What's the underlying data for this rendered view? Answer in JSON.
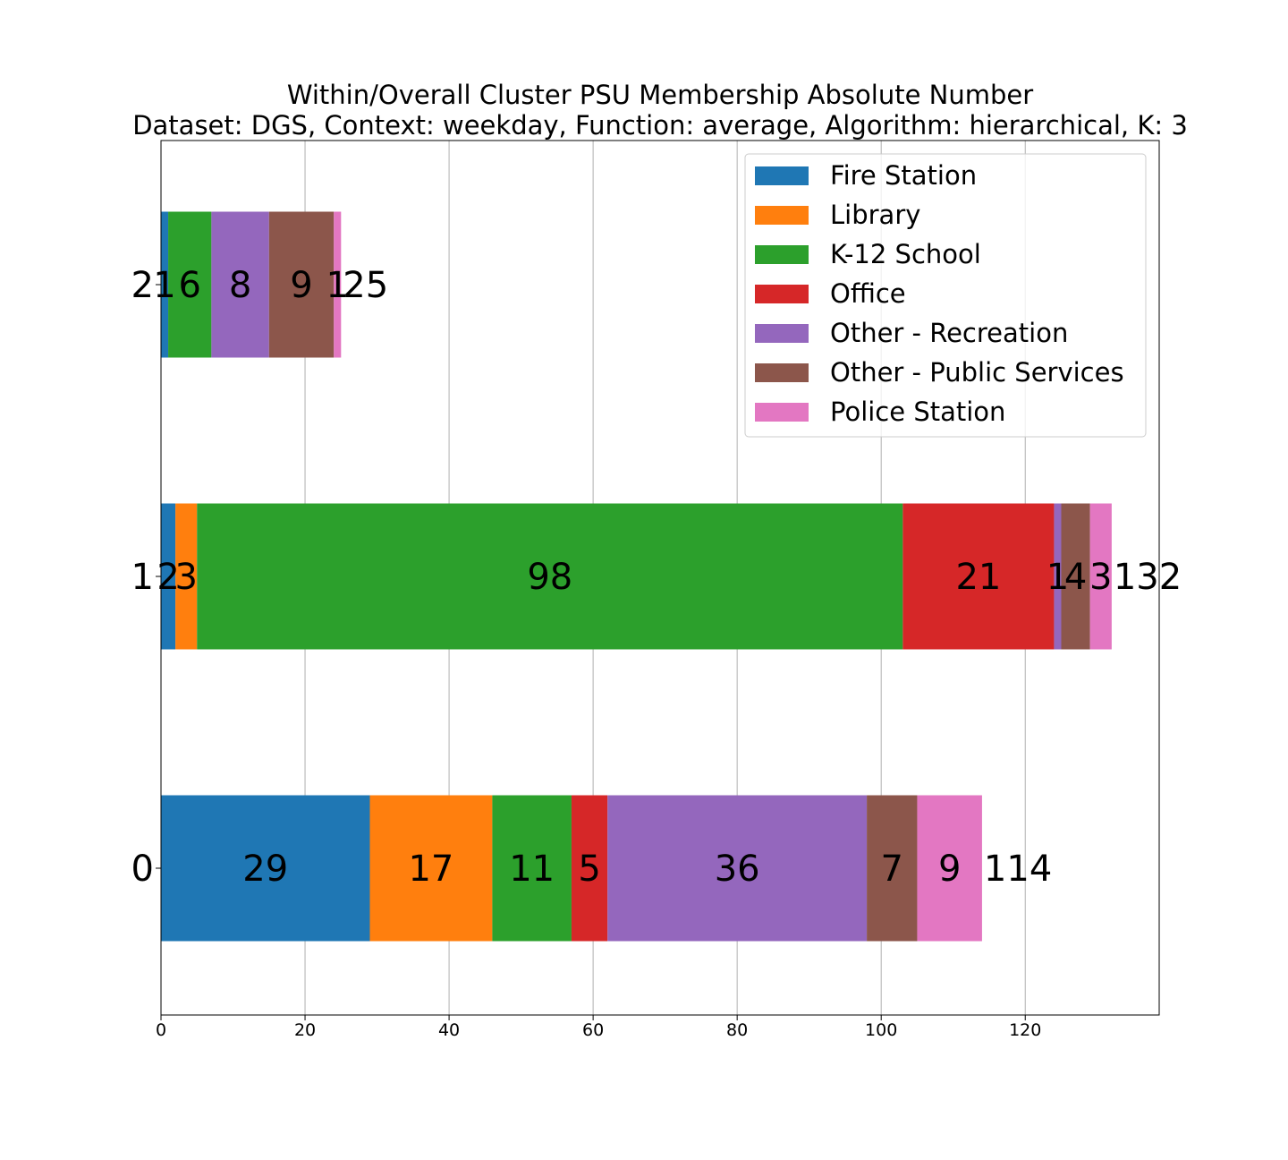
{
  "chart_data": {
    "type": "bar",
    "orientation": "horizontal",
    "stacked": true,
    "title": "Within/Overall Cluster PSU Membership Absolute Number",
    "subtitle": "Dataset: DGS, Context: weekday, Function: average, Algorithm: hierarchical, K: 3",
    "xlabel": "",
    "ylabel": "",
    "xlim": [
      0,
      138.6
    ],
    "xticks": [
      "0",
      "20",
      "40",
      "60",
      "80",
      "100",
      "120"
    ],
    "categories": [
      "0",
      "1",
      "2"
    ],
    "grid": "vertical",
    "legend_position": "top-right",
    "totals": [
      114,
      132,
      25
    ],
    "series": [
      {
        "name": "Fire Station",
        "color": "#1f77b4",
        "values": [
          29,
          2,
          1
        ]
      },
      {
        "name": "Library",
        "color": "#ff7f0e",
        "values": [
          17,
          3,
          0
        ]
      },
      {
        "name": "K-12 School",
        "color": "#2ca02c",
        "values": [
          11,
          98,
          6
        ]
      },
      {
        "name": "Office",
        "color": "#d62728",
        "values": [
          5,
          21,
          0
        ]
      },
      {
        "name": "Other - Recreation",
        "color": "#9467bd",
        "values": [
          36,
          1,
          8
        ]
      },
      {
        "name": "Other - Public Services",
        "color": "#8c564b",
        "values": [
          7,
          4,
          9
        ]
      },
      {
        "name": "Police Station",
        "color": "#e377c2",
        "values": [
          9,
          3,
          1
        ]
      }
    ]
  }
}
